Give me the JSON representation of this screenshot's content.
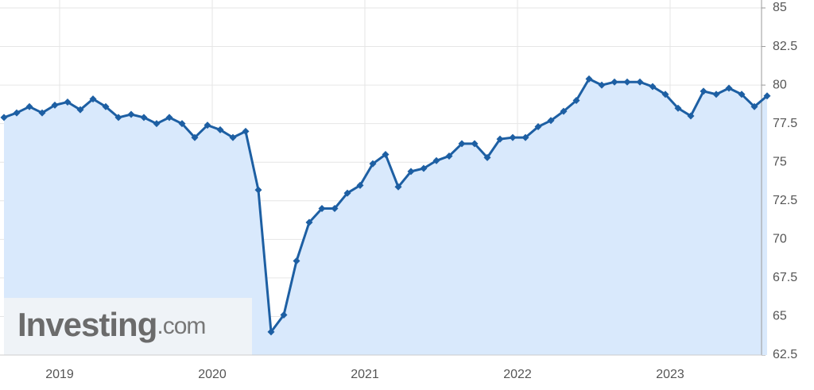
{
  "chart_data": {
    "type": "area-line",
    "watermark": {
      "brand": "Investing",
      "suffix": ".com"
    },
    "categories": [
      null,
      null,
      null,
      null,
      "2019",
      null,
      null,
      null,
      null,
      null,
      null,
      null,
      null,
      null,
      null,
      null,
      "2020",
      null,
      null,
      null,
      null,
      null,
      null,
      null,
      null,
      null,
      null,
      null,
      "2021",
      null,
      null,
      null,
      null,
      null,
      null,
      null,
      null,
      null,
      null,
      null,
      "2022",
      null,
      null,
      null,
      null,
      null,
      null,
      null,
      null,
      null,
      null,
      null,
      "2023",
      null,
      null,
      null,
      null,
      null,
      null,
      null,
      null
    ],
    "values": [
      77.9,
      78.2,
      78.6,
      78.2,
      78.7,
      78.9,
      78.4,
      79.1,
      78.6,
      77.9,
      78.1,
      77.9,
      77.5,
      77.9,
      77.5,
      76.6,
      77.4,
      77.1,
      76.6,
      77.0,
      73.2,
      64.0,
      65.1,
      68.6,
      71.1,
      72.0,
      72.0,
      73.0,
      73.5,
      74.9,
      75.5,
      73.4,
      74.4,
      74.6,
      75.1,
      75.4,
      76.2,
      76.2,
      75.3,
      76.5,
      76.6,
      76.6,
      77.3,
      77.7,
      78.3,
      79.0,
      80.4,
      80.0,
      80.2,
      80.2,
      80.2,
      79.9,
      79.4,
      78.5,
      78.0,
      79.6,
      79.4,
      79.8,
      79.4,
      78.6,
      79.3
    ],
    "color": "#1d5fa3",
    "fill": "#d9e9fc",
    "ylim": [
      62.5,
      85
    ],
    "yticks": [
      62.5,
      65,
      67.5,
      70,
      72.5,
      75,
      77.5,
      80,
      82.5,
      85
    ],
    "y_axis_side": "right",
    "grid": true
  }
}
